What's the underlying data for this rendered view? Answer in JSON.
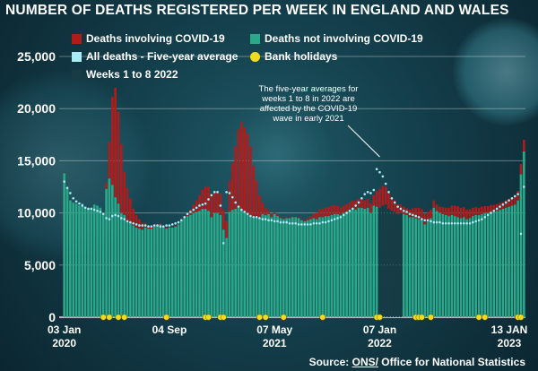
{
  "chart_data": {
    "type": "bar",
    "title": "NUMBER OF DEATHS REGISTERED PER WEEK IN ENGLAND AND WALES",
    "ylim": [
      0,
      25000
    ],
    "y_ticks": [
      "0",
      "5,000",
      "10,000",
      "15,000",
      "20,000",
      "25,000"
    ],
    "x_ticks": [
      {
        "week": 0,
        "l1": "03 Jan",
        "l2": "2020"
      },
      {
        "week": 35,
        "l1": "04 Sep",
        "l2": ""
      },
      {
        "week": 70,
        "l1": "07 May",
        "l2": "2021"
      },
      {
        "week": 105,
        "l1": "07 Jan",
        "l2": "2022"
      },
      {
        "week": 153,
        "l1": "13 JAN",
        "l2": "2023"
      }
    ],
    "legend": [
      {
        "label": "Deaths involving COVID-19",
        "color": "#b01c1c"
      },
      {
        "label": "Deaths not involving COVID-19",
        "color": "#2aa889"
      },
      {
        "label": "All deaths - Five-year average",
        "color": "#a8ecf5"
      },
      {
        "label": "Bank holidays",
        "color": "#f0dc1e"
      },
      {
        "label": "Weeks 1 to 8 2022",
        "color": "#173c43"
      }
    ],
    "annotation": "The five-year averages for weeks 1 to 8 in 2022 are affected by the COVID-19 wave in early 2021",
    "highlight_weeks_2022": [
      105,
      106,
      107,
      108,
      109,
      110,
      111,
      112
    ],
    "bank_holiday_weeks": [
      13,
      15,
      18,
      20,
      34,
      47,
      48,
      52,
      53,
      65,
      67,
      73,
      86,
      104,
      105,
      117,
      118,
      119,
      122,
      138,
      140,
      151,
      152
    ],
    "series": [
      {
        "name": "Deaths not involving COVID-19",
        "values": [
          13800,
          12400,
          11200,
          11000,
          10900,
          10700,
          10900,
          10600,
          10400,
          10300,
          10800,
          10700,
          10500,
          9900,
          12300,
          13300,
          12700,
          11500,
          10900,
          10000,
          9800,
          9200,
          9100,
          8800,
          8600,
          8500,
          8400,
          8600,
          8500,
          8500,
          8700,
          8800,
          8900,
          8700,
          8500,
          8600,
          8600,
          8700,
          8900,
          9300,
          9500,
          9700,
          9800,
          10000,
          10100,
          10200,
          10400,
          10400,
          10200,
          9600,
          10000,
          10000,
          9800,
          8400,
          7600,
          10100,
          10300,
          10400,
          10500,
          10300,
          10000,
          9800,
          9600,
          9500,
          9600,
          9500,
          9900,
          9800,
          9900,
          9600,
          9900,
          9700,
          9500,
          9400,
          9500,
          9500,
          9600,
          9600,
          9500,
          9300,
          9200,
          9300,
          9400,
          9500,
          9400,
          9600,
          9600,
          9700,
          9700,
          9800,
          9900,
          9900,
          9800,
          10000,
          10100,
          10200,
          10300,
          10300,
          10500,
          10500,
          10400,
          10500,
          10000,
          10700,
          10600,
          10500,
          10700,
          10800,
          10400,
          10200,
          10100,
          9900,
          10000,
          9900,
          9800,
          9600,
          9600,
          9500,
          9400,
          9300,
          8900,
          9200,
          9500,
          10500,
          10200,
          10000,
          9900,
          9800,
          9700,
          9800,
          9700,
          9600,
          9500,
          9600,
          9400,
          9500,
          9700,
          9800,
          9800,
          9900,
          10000,
          10000,
          10100,
          10100,
          10200,
          10300,
          10400,
          10500,
          10600,
          10700,
          10800,
          11200,
          13700,
          15900
        ]
      },
      {
        "name": "Deaths involving COVID-19",
        "values": [
          0,
          0,
          0,
          0,
          0,
          0,
          0,
          0,
          0,
          0,
          0,
          0,
          0,
          100,
          600,
          3500,
          8400,
          10500,
          8800,
          6600,
          4100,
          3200,
          2300,
          1600,
          1200,
          900,
          650,
          450,
          300,
          200,
          150,
          100,
          90,
          80,
          70,
          60,
          50,
          60,
          80,
          120,
          200,
          300,
          500,
          800,
          1100,
          1500,
          1800,
          2100,
          2300,
          2200,
          2100,
          2000,
          2000,
          1900,
          1600,
          3000,
          4500,
          6000,
          7500,
          8400,
          8200,
          7800,
          6800,
          5000,
          3500,
          2200,
          1100,
          650,
          350,
          200,
          150,
          100,
          80,
          70,
          60,
          50,
          50,
          50,
          60,
          80,
          120,
          200,
          300,
          450,
          600,
          750,
          800,
          850,
          850,
          900,
          850,
          800,
          750,
          700,
          750,
          800,
          850,
          900,
          850,
          800,
          800,
          850,
          900,
          1000,
          1500,
          1800,
          1900,
          1700,
          1500,
          1300,
          1100,
          900,
          800,
          700,
          650,
          700,
          850,
          1000,
          1100,
          1050,
          1000,
          900,
          800,
          700,
          600,
          600,
          650,
          700,
          800,
          900,
          1000,
          1050,
          1000,
          950,
          900,
          850,
          800,
          750,
          700,
          700,
          650,
          650,
          650,
          650,
          650,
          650,
          650,
          700,
          750,
          800,
          850,
          900,
          1000,
          1100
        ]
      },
      {
        "name": "All deaths - Five-year average",
        "values": [
          13000,
          12400,
          11900,
          11400,
          11100,
          10900,
          10700,
          10500,
          10400,
          10400,
          10300,
          10200,
          10100,
          9900,
          9500,
          9400,
          9700,
          9800,
          9700,
          9500,
          9400,
          9200,
          9100,
          9000,
          8900,
          8800,
          8800,
          8800,
          8700,
          8700,
          8800,
          8800,
          8700,
          8700,
          8800,
          8800,
          8900,
          9000,
          9100,
          9300,
          9600,
          9900,
          10100,
          10300,
          10500,
          10700,
          10800,
          10900,
          11300,
          11700,
          12000,
          12000,
          10700,
          7100,
          12000,
          11900,
          11500,
          11000,
          10600,
          10300,
          10100,
          9900,
          9700,
          9600,
          9600,
          9500,
          9400,
          9400,
          9300,
          9300,
          9200,
          9200,
          9100,
          9100,
          9100,
          9000,
          9000,
          9000,
          8900,
          8900,
          8900,
          8900,
          8900,
          9000,
          9000,
          9000,
          9100,
          9100,
          9200,
          9300,
          9400,
          9500,
          9600,
          9800,
          10000,
          10200,
          10400,
          10700,
          11000,
          11400,
          11800,
          12000,
          11900,
          12200,
          14200,
          13900,
          13500,
          12800,
          12000,
          11400,
          11000,
          10600,
          10400,
          10200,
          10100,
          9900,
          9800,
          9700,
          9600,
          9400,
          9300,
          9300,
          9200,
          9100,
          9100,
          9100,
          9000,
          9000,
          9000,
          9000,
          9000,
          9000,
          9000,
          9000,
          9000,
          9000,
          9100,
          9200,
          9300,
          9400,
          9600,
          9800,
          10000,
          10200,
          10400,
          10600,
          10800,
          11000,
          11200,
          11400,
          11600,
          11800,
          8000,
          12500,
          11500,
          12000
        ]
      }
    ]
  },
  "source": {
    "prefix": "Source: ",
    "link": "ONS/",
    "rest": " Office for National Statistics"
  }
}
